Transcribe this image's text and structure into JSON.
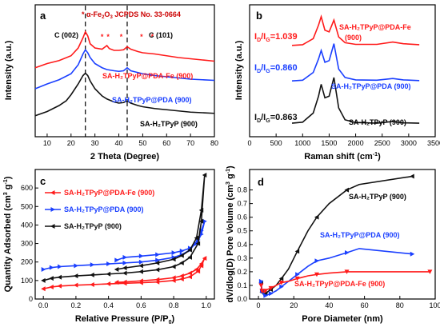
{
  "chart_data": [
    {
      "panel": "a",
      "type": "line",
      "xlabel": "2 Theta (Degree)",
      "ylabel": "Intensity (a.u.)",
      "xlim": [
        5,
        80
      ],
      "xticks": [
        10,
        20,
        30,
        40,
        50,
        60,
        70,
        80
      ],
      "yticks_shown": false,
      "annotations": {
        "c002": "C (002)",
        "c101": "C (101)",
        "jcpds_star": "*",
        "jcpds_phase": "α-Fe",
        "jcpds_sub": "2",
        "jcpds_o": "O",
        "jcpds_sub2": "3",
        "jcpds_card": "JCPDS No. 33-0664"
      },
      "dashed_lines_x": [
        26,
        43.5
      ],
      "series": [
        {
          "name": "SA-H₂TPyP@PDA-Fe (900)",
          "color": "#ff1a1a",
          "x": [
            5,
            10,
            15,
            20,
            23,
            25,
            26,
            27,
            28,
            30,
            33,
            35,
            36,
            38,
            40,
            42,
            43.5,
            45,
            48,
            50,
            55,
            60,
            65,
            70,
            75,
            80
          ],
          "y": [
            1.55,
            1.62,
            1.67,
            1.75,
            1.88,
            2.05,
            2.15,
            2.08,
            1.95,
            1.88,
            1.86,
            1.92,
            1.87,
            1.84,
            1.84,
            1.85,
            1.9,
            1.86,
            1.82,
            1.8,
            1.78,
            1.75,
            1.72,
            1.7,
            1.68,
            1.66
          ]
        },
        {
          "name": "SA-H₂TPyP@PDA (900)",
          "color": "#1a3fff",
          "x": [
            5,
            10,
            15,
            20,
            23,
            25,
            26,
            27,
            28,
            30,
            33,
            35,
            38,
            40,
            42,
            43.5,
            45,
            48,
            50,
            55,
            60,
            65,
            70,
            75,
            80
          ],
          "y": [
            1.2,
            1.28,
            1.35,
            1.45,
            1.6,
            1.78,
            1.85,
            1.8,
            1.72,
            1.62,
            1.55,
            1.52,
            1.5,
            1.49,
            1.5,
            1.55,
            1.5,
            1.47,
            1.45,
            1.42,
            1.4,
            1.38,
            1.36,
            1.35,
            1.34
          ]
        },
        {
          "name": "SA-H₂TPyP (900)",
          "color": "#111111",
          "x": [
            5,
            10,
            15,
            18,
            20,
            23,
            25,
            26,
            27,
            28,
            30,
            33,
            35,
            38,
            40,
            42,
            43.5,
            45,
            48,
            50,
            55,
            60,
            65,
            70,
            75,
            80
          ],
          "y": [
            0.75,
            0.82,
            0.92,
            1.0,
            1.1,
            1.28,
            1.42,
            1.46,
            1.42,
            1.33,
            1.2,
            1.08,
            1.03,
            0.98,
            0.96,
            0.97,
            1.0,
            0.96,
            0.92,
            0.9,
            0.87,
            0.85,
            0.83,
            0.81,
            0.8,
            0.79
          ]
        }
      ],
      "markers_star_x": [
        33,
        35.5,
        41,
        49.5,
        54
      ]
    },
    {
      "panel": "b",
      "type": "line",
      "xlabel": "Raman shift (cm",
      "xlabel_sup": "-1",
      "xlabel_end": ")",
      "ylabel": "Intensity (a.u.)",
      "xlim": [
        0,
        3500
      ],
      "xticks": [
        0,
        500,
        1000,
        1500,
        2000,
        2500,
        3000,
        3500
      ],
      "ratios": [
        {
          "text": "I",
          "sub1": "D",
          "mid": "/I",
          "sub2": "G",
          "val": "=1.039",
          "color": "#ff1a1a"
        },
        {
          "text": "I",
          "sub1": "D",
          "mid": "/I",
          "sub2": "G",
          "val": "=0.860",
          "color": "#1a3fff"
        },
        {
          "text": "I",
          "sub1": "D",
          "mid": "/I",
          "sub2": "G",
          "val": "=0.863",
          "color": "#111111"
        }
      ],
      "series": [
        {
          "name": "SA-H₂TPyP@PDA-Fe",
          "name_suffix": "(900)",
          "color": "#ff1a1a",
          "x": [
            800,
            1000,
            1200,
            1300,
            1350,
            1420,
            1500,
            1590,
            1680,
            1800,
            2000,
            2400,
            2700,
            2900,
            3200
          ],
          "y": [
            3.0,
            3.02,
            3.2,
            3.6,
            3.85,
            3.45,
            3.4,
            3.75,
            3.25,
            3.08,
            3.03,
            3.03,
            3.1,
            3.05,
            3.02
          ]
        },
        {
          "name": "SA-H₂TPyP@PDA (900)",
          "color": "#1a3fff",
          "x": [
            800,
            1000,
            1200,
            1300,
            1350,
            1420,
            1500,
            1590,
            1680,
            1800,
            2000,
            2400,
            2700,
            2900,
            3200
          ],
          "y": [
            1.95,
            1.97,
            2.2,
            2.6,
            2.85,
            2.5,
            2.55,
            3.05,
            2.3,
            2.05,
            1.98,
            1.97,
            2.02,
            1.98,
            1.96
          ]
        },
        {
          "name": "SA-H₂TPyP (900)",
          "color": "#111111",
          "x": [
            800,
            1000,
            1200,
            1300,
            1350,
            1420,
            1500,
            1590,
            1680,
            1800,
            2000,
            2400,
            2700,
            2900,
            3200
          ],
          "y": [
            0.7,
            0.73,
            1.0,
            1.5,
            1.85,
            1.45,
            1.5,
            2.05,
            1.15,
            0.8,
            0.72,
            0.7,
            0.75,
            0.71,
            0.7
          ]
        }
      ]
    },
    {
      "panel": "c",
      "type": "line",
      "xlabel": "Relative Pressure (P/P",
      "xlabel_sub": "0",
      "xlabel_end": ")",
      "ylabel": "Quantity Adsorbed (cm",
      "ylabel_sup1": "3",
      "ylabel_mid": " g",
      "ylabel_sup2": "-1",
      "ylabel_end": ")",
      "xlim": [
        -0.05,
        1.05
      ],
      "ylim": [
        0,
        700
      ],
      "xticks": [
        0.0,
        0.2,
        0.4,
        0.6,
        0.8,
        1.0
      ],
      "yticks": [
        0,
        100,
        200,
        300,
        400,
        500,
        600
      ],
      "series": [
        {
          "name": "SA-H₂TPyP@PDA-Fe (900)",
          "color": "#ff1a1a",
          "x": [
            0.0,
            0.05,
            0.1,
            0.2,
            0.3,
            0.4,
            0.5,
            0.6,
            0.7,
            0.8,
            0.85,
            0.9,
            0.95,
            0.97,
            0.99,
            0.97,
            0.94,
            0.9,
            0.85,
            0.8,
            0.7,
            0.6,
            0.5,
            0.45
          ],
          "y": [
            55,
            65,
            70,
            75,
            78,
            82,
            85,
            88,
            92,
            100,
            108,
            120,
            150,
            180,
            220,
            190,
            160,
            140,
            125,
            115,
            105,
            98,
            92,
            90
          ]
        },
        {
          "name": "SA-H₂TPyP@PDA (900)",
          "color": "#1a3fff",
          "x": [
            0.0,
            0.05,
            0.1,
            0.2,
            0.3,
            0.4,
            0.5,
            0.6,
            0.7,
            0.8,
            0.85,
            0.9,
            0.95,
            0.97,
            0.99,
            0.97,
            0.94,
            0.9,
            0.85,
            0.8,
            0.7,
            0.6,
            0.5,
            0.45
          ],
          "y": [
            160,
            170,
            175,
            180,
            185,
            190,
            195,
            200,
            210,
            225,
            240,
            265,
            320,
            370,
            420,
            350,
            300,
            275,
            260,
            250,
            240,
            232,
            225,
            210
          ]
        },
        {
          "name": "SA-H₂TPyP (900)",
          "color": "#111111",
          "x": [
            0.0,
            0.05,
            0.1,
            0.2,
            0.3,
            0.4,
            0.5,
            0.6,
            0.7,
            0.8,
            0.85,
            0.9,
            0.95,
            0.97,
            0.99,
            0.97,
            0.94,
            0.9,
            0.85,
            0.8,
            0.7,
            0.6,
            0.5,
            0.45
          ],
          "y": [
            100,
            112,
            118,
            125,
            130,
            135,
            140,
            148,
            158,
            175,
            195,
            225,
            300,
            420,
            670,
            480,
            330,
            265,
            235,
            215,
            195,
            180,
            168,
            160
          ]
        }
      ]
    },
    {
      "panel": "d",
      "type": "line",
      "xlabel": "Pore Diameter (nm)",
      "ylabel": "dV/dlog(D) Pore Volume (cm",
      "ylabel_sup1": "3",
      "ylabel_mid": " g",
      "ylabel_sup2": "-1",
      "ylabel_end": ")",
      "xlim": [
        -5,
        100
      ],
      "ylim": [
        0,
        0.95
      ],
      "xticks": [
        0,
        20,
        40,
        60,
        80,
        100
      ],
      "yticks": [
        0.0,
        0.1,
        0.2,
        0.3,
        0.4,
        0.5,
        0.6,
        0.7,
        0.8
      ],
      "series": [
        {
          "name": "SA-H₂TPyP (900)",
          "color": "#111111",
          "x": [
            1.5,
            2,
            3,
            4,
            5,
            7,
            10,
            13,
            17,
            22,
            28,
            33,
            40,
            50,
            57,
            87
          ],
          "y": [
            0.12,
            0.05,
            0.03,
            0.04,
            0.05,
            0.07,
            0.1,
            0.15,
            0.22,
            0.35,
            0.5,
            0.6,
            0.7,
            0.8,
            0.84,
            0.9
          ]
        },
        {
          "name": "SA-H₂TPyP@PDA (900)",
          "color": "#1a3fff",
          "x": [
            1.5,
            2,
            3,
            4,
            5,
            7,
            10,
            13,
            17,
            22,
            28,
            33,
            40,
            50,
            57,
            87
          ],
          "y": [
            0.13,
            0.06,
            0.03,
            0.025,
            0.03,
            0.04,
            0.06,
            0.09,
            0.13,
            0.18,
            0.24,
            0.28,
            0.3,
            0.34,
            0.37,
            0.33
          ]
        },
        {
          "name": "SA-H₂TPyP@PDA-Fe (900)",
          "color": "#ff1a1a",
          "x": [
            1.5,
            2,
            3,
            4,
            5,
            7,
            10,
            13,
            17,
            22,
            28,
            33,
            40,
            50,
            57,
            97
          ],
          "y": [
            0.1,
            0.06,
            0.05,
            0.06,
            0.07,
            0.08,
            0.1,
            0.12,
            0.13,
            0.15,
            0.17,
            0.18,
            0.19,
            0.2,
            0.2,
            0.2
          ]
        }
      ]
    }
  ]
}
